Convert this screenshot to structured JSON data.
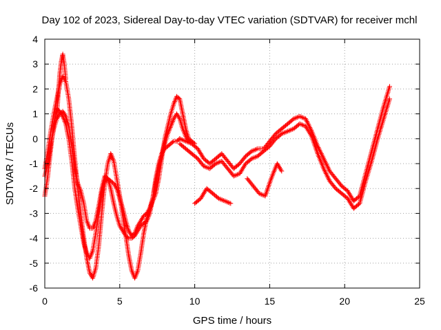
{
  "chart_data": {
    "type": "scatter",
    "title": "Day 102 of 2023, Sidereal Day-to-day VTEC variation (SDTVAR) for receiver mchl",
    "xlabel": "GPS time / hours",
    "ylabel": "SDTVAR / TECUs",
    "xlim": [
      0,
      25
    ],
    "ylim": [
      -6,
      4
    ],
    "x_ticks": [
      "0",
      "5",
      "10",
      "15",
      "20",
      "25"
    ],
    "y_ticks": [
      "-6",
      "-5",
      "-4",
      "-3",
      "-2",
      "-1",
      "0",
      "1",
      "2",
      "3",
      "4"
    ],
    "grid": true,
    "marker": "plus",
    "color": "#ff0000",
    "series": [
      {
        "x": [
          0.0,
          0.2,
          0.4,
          0.6,
          0.8,
          1.0,
          1.2,
          1.4,
          1.6,
          1.8,
          2.0,
          2.2,
          2.4,
          2.6,
          2.8,
          3.0,
          3.2,
          3.4,
          3.6,
          3.8,
          4.0,
          4.2,
          4.4,
          4.6,
          4.8,
          5.0,
          5.2,
          5.4,
          5.6,
          5.8,
          6.0,
          6.2,
          6.4,
          6.6,
          6.8,
          7.0,
          7.2,
          7.4,
          7.6,
          7.8,
          8.0,
          8.2,
          8.4,
          8.6,
          8.8,
          9.0,
          9.2,
          9.4,
          9.6,
          9.8,
          10.0
        ],
        "y": [
          -1.2,
          -0.5,
          0.3,
          1.0,
          1.6,
          2.2,
          2.5,
          2.3,
          1.6,
          0.5,
          -0.8,
          -2.0,
          -3.0,
          -4.0,
          -4.8,
          -5.4,
          -5.6,
          -5.2,
          -4.3,
          -3.0,
          -1.8,
          -1.0,
          -0.6,
          -0.9,
          -1.6,
          -2.3,
          -3.1,
          -3.9,
          -4.7,
          -5.3,
          -5.6,
          -5.3,
          -4.6,
          -3.8,
          -3.2,
          -2.8,
          -2.5,
          -2.2,
          -1.6,
          -0.8,
          0.0,
          0.5,
          1.0,
          1.4,
          1.7,
          1.6,
          1.0,
          0.4,
          0.0,
          -0.1,
          -0.2
        ]
      },
      {
        "x": [
          0.0,
          0.2,
          0.4,
          0.6,
          0.8,
          1.0,
          1.2,
          1.4,
          1.6,
          1.8,
          2.0,
          2.2,
          2.4,
          2.6,
          2.8,
          3.0,
          3.2,
          3.4,
          3.6,
          3.8,
          4.0,
          4.2,
          4.4,
          4.6,
          4.8,
          5.0,
          5.2,
          5.4,
          5.6,
          5.8,
          6.0,
          6.2,
          6.4,
          6.6,
          6.8,
          7.0,
          7.2,
          7.4,
          7.6,
          7.8,
          8.0,
          8.2,
          8.4,
          8.6,
          8.8,
          9.0,
          9.2,
          9.4,
          9.6
        ],
        "y": [
          -2.3,
          -1.5,
          -0.4,
          0.6,
          1.2,
          1.1,
          0.9,
          0.6,
          0.0,
          -0.9,
          -2.0,
          -2.8,
          -3.5,
          -4.2,
          -4.6,
          -4.8,
          -4.5,
          -3.8,
          -3.0,
          -2.2,
          -1.7,
          -1.6,
          -1.7,
          -1.8,
          -2.0,
          -2.4,
          -2.8,
          -3.3,
          -3.7,
          -3.9,
          -3.8,
          -3.5,
          -3.3,
          -3.1,
          -3.0,
          -2.8,
          -2.4,
          -1.8,
          -1.2,
          -0.6,
          -0.2,
          0.2,
          0.5,
          0.8,
          1.0,
          0.8,
          0.4,
          0.1,
          -0.1
        ]
      },
      {
        "x": [
          0.0,
          0.2,
          0.4,
          0.6,
          0.8,
          1.0,
          1.2,
          1.4,
          1.6,
          1.8,
          2.0,
          2.2,
          2.4,
          2.6,
          2.8,
          3.0,
          3.2,
          3.4,
          3.6,
          3.8,
          4.0,
          4.2,
          4.4,
          4.6,
          4.8,
          5.0,
          5.2,
          5.4,
          5.6,
          5.8,
          6.0,
          6.2,
          6.4,
          6.6,
          6.8,
          7.0,
          7.2,
          7.4,
          7.6,
          7.8,
          8.0,
          8.2,
          8.4,
          8.6,
          8.8,
          9.0
        ],
        "y": [
          -1.5,
          -1.0,
          -0.2,
          0.4,
          0.8,
          1.0,
          1.1,
          0.9,
          0.5,
          -0.3,
          -1.2,
          -1.8,
          -2.1,
          -2.6,
          -3.3,
          -3.6,
          -3.6,
          -3.3,
          -2.7,
          -2.0,
          -1.5,
          -1.6,
          -2.0,
          -2.6,
          -3.1,
          -3.5,
          -3.7,
          -3.9,
          -4.0,
          -4.0,
          -3.9,
          -3.7,
          -3.5,
          -3.4,
          -3.3,
          -3.0,
          -2.4,
          -1.6,
          -1.0,
          -0.6,
          -0.4,
          -0.3,
          -0.2,
          -0.1,
          -0.1,
          0.0
        ]
      },
      {
        "x": [
          0.8,
          0.9,
          1.0,
          1.1,
          1.2,
          1.3,
          1.4
        ],
        "y": [
          1.0,
          1.8,
          2.6,
          3.1,
          3.4,
          3.0,
          2.4
        ]
      },
      {
        "x": [
          9.0,
          9.4,
          9.8,
          10.2,
          10.6,
          11.0,
          11.4,
          11.8,
          12.2,
          12.6,
          13.0,
          13.4,
          13.8,
          14.2,
          14.6,
          15.0,
          15.4,
          15.8,
          16.2,
          16.6,
          17.0,
          17.4,
          17.8,
          18.2,
          18.6,
          19.0,
          19.4,
          19.8,
          20.2,
          20.6,
          21.0,
          21.4,
          21.8,
          22.2,
          22.6,
          23.0
        ],
        "y": [
          0.0,
          -0.1,
          -0.2,
          -0.4,
          -0.8,
          -1.0,
          -0.8,
          -0.6,
          -0.9,
          -1.2,
          -1.0,
          -0.7,
          -0.5,
          -0.4,
          -0.4,
          -0.1,
          0.2,
          0.4,
          0.6,
          0.8,
          0.9,
          0.8,
          0.3,
          -0.3,
          -0.8,
          -1.3,
          -1.6,
          -1.9,
          -2.1,
          -2.5,
          -2.3,
          -1.4,
          -0.5,
          0.4,
          1.3,
          2.1
        ]
      },
      {
        "x": [
          9.0,
          9.4,
          9.8,
          10.2,
          10.6,
          11.0,
          11.4,
          11.8,
          12.2,
          12.6,
          13.0,
          13.4,
          13.8,
          14.2,
          14.6,
          15.0,
          15.4,
          15.8,
          16.2,
          16.6,
          17.0,
          17.4,
          17.8,
          18.2,
          18.6,
          19.0,
          19.4,
          19.8,
          20.2,
          20.6,
          21.0,
          21.4,
          21.8,
          22.2,
          22.6,
          23.0
        ],
        "y": [
          -0.2,
          -0.4,
          -0.6,
          -0.8,
          -1.1,
          -1.2,
          -1.0,
          -0.9,
          -1.2,
          -1.5,
          -1.4,
          -1.0,
          -0.8,
          -0.7,
          -0.5,
          -0.3,
          0.0,
          0.2,
          0.3,
          0.4,
          0.6,
          0.5,
          0.1,
          -0.6,
          -1.2,
          -1.7,
          -2.0,
          -2.2,
          -2.4,
          -2.8,
          -2.6,
          -1.7,
          -0.9,
          0.0,
          0.8,
          1.6
        ]
      },
      {
        "x": [
          10.0,
          10.4,
          10.8,
          11.2,
          11.6,
          12.0,
          12.4
        ],
        "y": [
          -2.6,
          -2.4,
          -2.0,
          -2.2,
          -2.4,
          -2.5,
          -2.6
        ]
      },
      {
        "x": [
          13.5,
          13.9,
          14.3,
          14.7,
          15.1,
          15.5,
          15.8
        ],
        "y": [
          -1.6,
          -1.9,
          -2.2,
          -2.3,
          -1.6,
          -1.0,
          -1.3
        ]
      }
    ]
  }
}
